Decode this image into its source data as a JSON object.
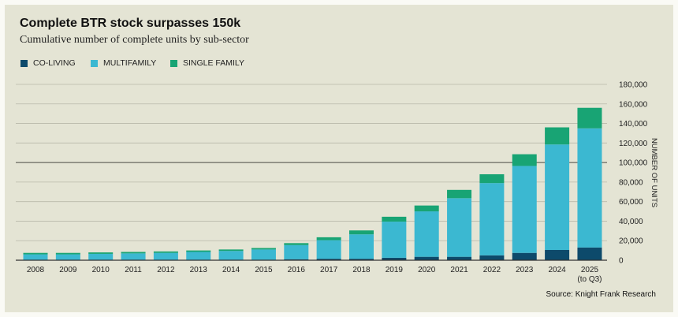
{
  "header": {
    "title": "Complete BTR stock surpasses 150k",
    "subtitle": "Cumulative number of complete units by sub-sector"
  },
  "footer": {
    "source": "Source: Knight Frank Research"
  },
  "colors": {
    "background": "#e4e4d4",
    "co_living": "#0d4a6b",
    "multifamily": "#3bb8d1",
    "single_family": "#18a474",
    "gridline": "#b9b9aa",
    "axis": "#333333"
  },
  "chart_data": {
    "type": "bar",
    "stacked": true,
    "title": "Complete BTR stock surpasses 150k",
    "subtitle": "Cumulative number of complete units by sub-sector",
    "ylabel": "NUMBER OF UNITS",
    "ylim": [
      0,
      180000
    ],
    "yticks": [
      0,
      20000,
      40000,
      60000,
      80000,
      100000,
      120000,
      140000,
      160000,
      180000
    ],
    "ytick_labels": [
      "0",
      "20,000",
      "40,000",
      "60,000",
      "80,000",
      "100,000",
      "120,000",
      "140,000",
      "160,000",
      "180,000"
    ],
    "grid": true,
    "legend_position": "top-left",
    "categories": [
      "2008",
      "2009",
      "2010",
      "2011",
      "2012",
      "2013",
      "2014",
      "2015",
      "2016",
      "2017",
      "2018",
      "2019",
      "2020",
      "2021",
      "2022",
      "2023",
      "2024",
      "2025"
    ],
    "category_sublabels": [
      "",
      "",
      "",
      "",
      "",
      "",
      "",
      "",
      "",
      "",
      "",
      "",
      "",
      "",
      "",
      "",
      "",
      "(to Q3)"
    ],
    "series": [
      {
        "name": "CO-LIVING",
        "color": "#0d4a6b",
        "values": [
          0,
          0,
          0,
          0,
          0,
          0,
          0,
          0,
          1000,
          1500,
          1500,
          2500,
          3500,
          3500,
          5000,
          7500,
          10500,
          13000
        ]
      },
      {
        "name": "MULTIFAMILY",
        "color": "#3bb8d1",
        "values": [
          6000,
          6000,
          6500,
          7000,
          7500,
          8500,
          9500,
          11000,
          14500,
          19000,
          25000,
          37000,
          46500,
          60000,
          74000,
          89000,
          108000,
          122000
        ]
      },
      {
        "name": "SINGLE FAMILY",
        "color": "#18a474",
        "values": [
          1500,
          1500,
          1500,
          1500,
          1500,
          1500,
          1500,
          1500,
          2000,
          3000,
          4000,
          5000,
          6000,
          8500,
          9000,
          12000,
          17500,
          21000
        ]
      }
    ]
  }
}
